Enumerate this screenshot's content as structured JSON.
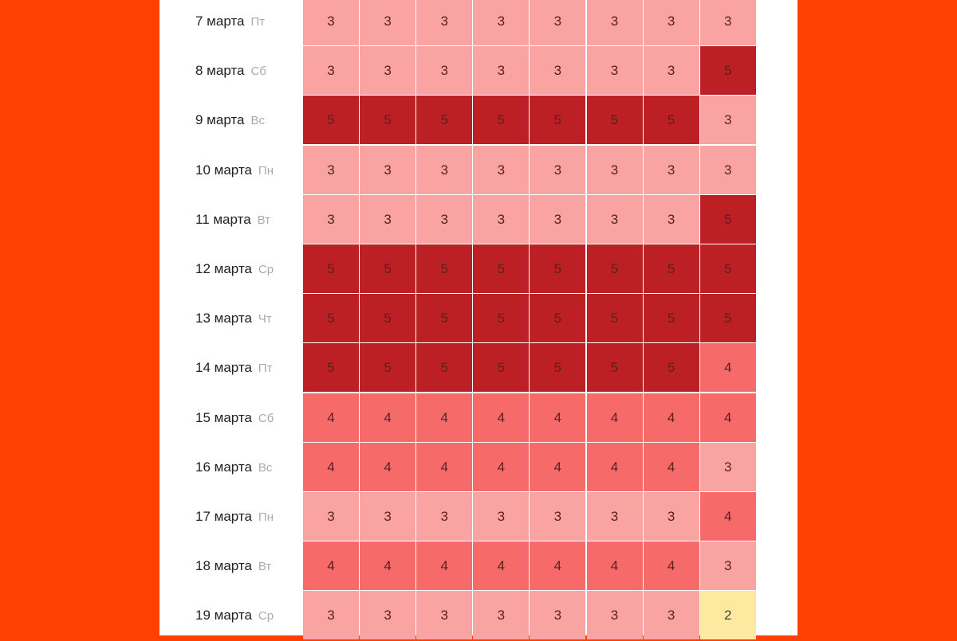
{
  "chart_data": {
    "type": "heatmap",
    "rows": [
      {
        "date": "7 марта",
        "weekday": "Пт",
        "values": [
          3,
          3,
          3,
          3,
          3,
          3,
          3,
          3
        ]
      },
      {
        "date": "8 марта",
        "weekday": "Сб",
        "values": [
          3,
          3,
          3,
          3,
          3,
          3,
          3,
          5
        ]
      },
      {
        "date": "9 марта",
        "weekday": "Вс",
        "values": [
          5,
          5,
          5,
          5,
          5,
          5,
          5,
          3
        ]
      },
      {
        "date": "10 марта",
        "weekday": "Пн",
        "values": [
          3,
          3,
          3,
          3,
          3,
          3,
          3,
          3
        ]
      },
      {
        "date": "11 марта",
        "weekday": "Вт",
        "values": [
          3,
          3,
          3,
          3,
          3,
          3,
          3,
          5
        ]
      },
      {
        "date": "12 марта",
        "weekday": "Ср",
        "values": [
          5,
          5,
          5,
          5,
          5,
          5,
          5,
          5
        ]
      },
      {
        "date": "13 марта",
        "weekday": "Чт",
        "values": [
          5,
          5,
          5,
          5,
          5,
          5,
          5,
          5
        ]
      },
      {
        "date": "14 марта",
        "weekday": "Пт",
        "values": [
          5,
          5,
          5,
          5,
          5,
          5,
          5,
          4
        ]
      },
      {
        "date": "15 марта",
        "weekday": "Сб",
        "values": [
          4,
          4,
          4,
          4,
          4,
          4,
          4,
          4
        ]
      },
      {
        "date": "16 марта",
        "weekday": "Вс",
        "values": [
          4,
          4,
          4,
          4,
          4,
          4,
          4,
          3
        ]
      },
      {
        "date": "17 марта",
        "weekday": "Пн",
        "values": [
          3,
          3,
          3,
          3,
          3,
          3,
          3,
          4
        ]
      },
      {
        "date": "18 марта",
        "weekday": "Вт",
        "values": [
          4,
          4,
          4,
          4,
          4,
          4,
          4,
          3
        ]
      },
      {
        "date": "19 марта",
        "weekday": "Ср",
        "values": [
          3,
          3,
          3,
          3,
          3,
          3,
          3,
          2
        ]
      }
    ],
    "color_scale": {
      "2": "#fde9a0",
      "3": "#f9a3a3",
      "4": "#f76a6a",
      "5": "#bd2024"
    }
  },
  "colors": {
    "background": "#ff4000",
    "panel": "#ffffff"
  }
}
